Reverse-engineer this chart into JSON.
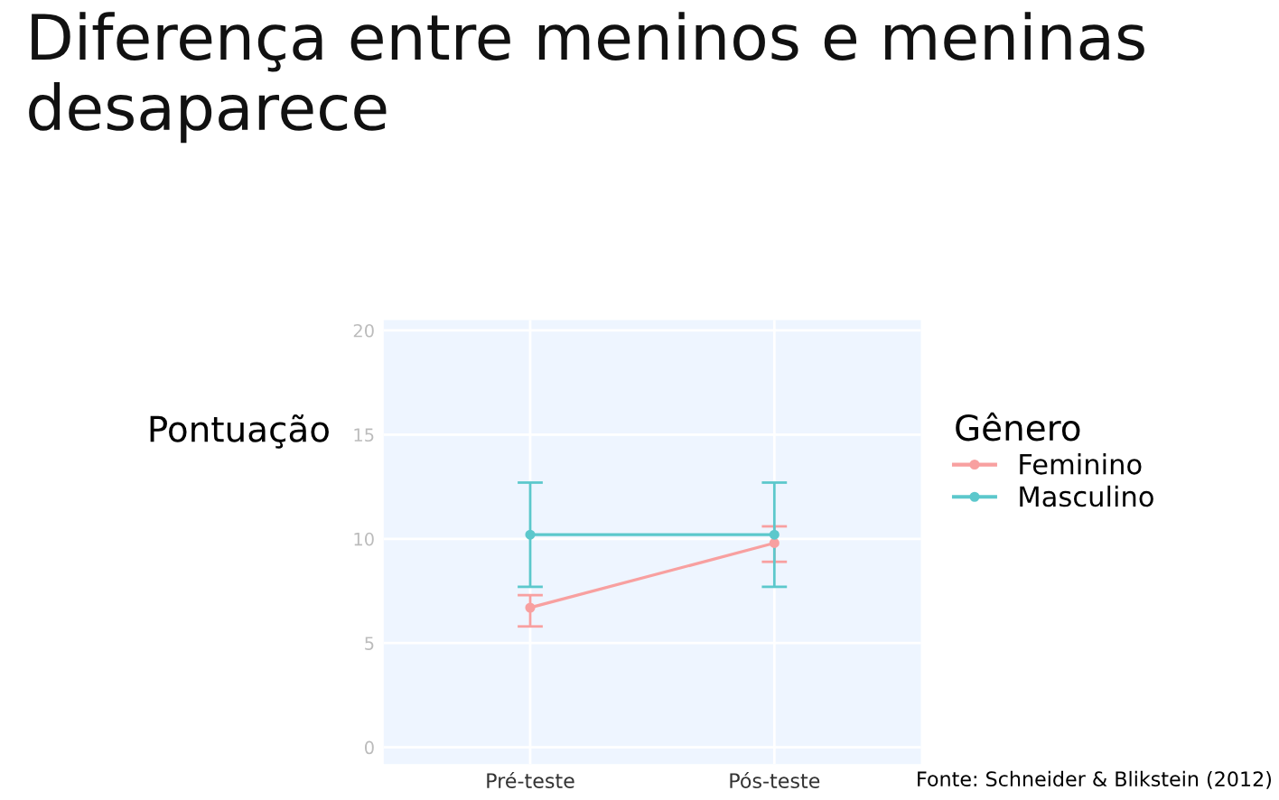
{
  "chart_data": {
    "type": "line",
    "title": "Diferença entre meninos e meninas desaparece",
    "ylabel": "Pontuação",
    "legend_title": "Gênero",
    "categories": [
      "Pré-teste",
      "Pós-teste"
    ],
    "series": [
      {
        "name": "Feminino",
        "color": "#f8a0a0",
        "values": [
          6.7,
          9.8
        ],
        "errors": [
          [
            5.8,
            7.3
          ],
          [
            8.9,
            10.6
          ]
        ]
      },
      {
        "name": "Masculino",
        "color": "#5cc8cc",
        "values": [
          10.2,
          10.2
        ],
        "errors": [
          [
            7.7,
            12.7
          ],
          [
            7.7,
            12.7
          ]
        ]
      }
    ],
    "ylim": [
      -0.8,
      20.5
    ],
    "yticks": [
      0,
      5,
      10,
      15,
      20
    ],
    "grid": true,
    "legend": "right",
    "marker": "circle",
    "line_style": "solid",
    "annotations": [
      "Fonte: Schneider & Blikstein (2012)"
    ]
  }
}
